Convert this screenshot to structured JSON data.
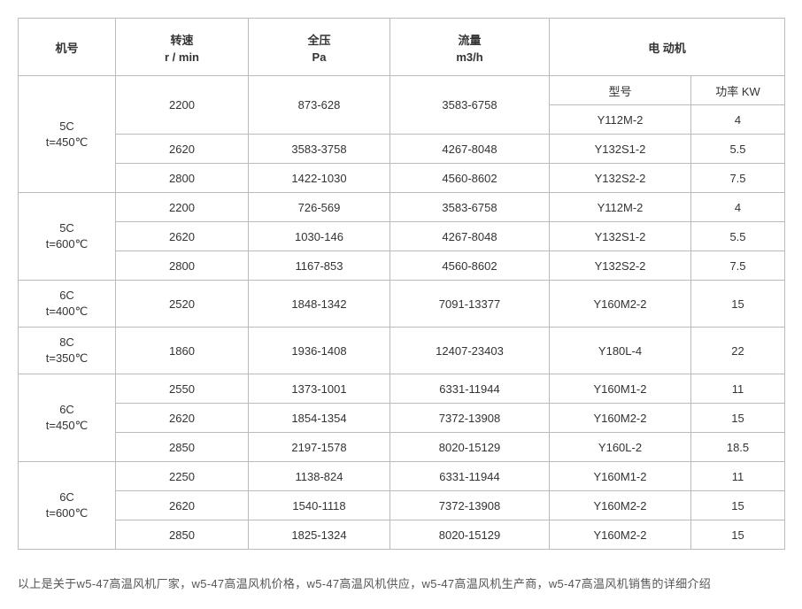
{
  "columns": {
    "machine": "机号",
    "speed_line1": "转速",
    "speed_line2": "r / min",
    "pressure_line1": "全压",
    "pressure_line2": "Pa",
    "flow_line1": "流量",
    "flow_line2": "m3/h",
    "motor_header": "电  动机",
    "motor_model": "型号",
    "motor_power": "功率 KW"
  },
  "groups": [
    {
      "label_line1": "5C",
      "label_line2": "t=450℃",
      "rowspan": 3,
      "model_sub": true,
      "rows": [
        {
          "speed": "2200",
          "pressure": "873-628",
          "flow": "3583-6758",
          "model": "Y112M-2",
          "power": "4"
        },
        {
          "speed": "2620",
          "pressure": "3583-3758",
          "flow": "4267-8048",
          "model": "Y132S1-2",
          "power": "5.5"
        },
        {
          "speed": "2800",
          "pressure": "1422-1030",
          "flow": "4560-8602",
          "model": "Y132S2-2",
          "power": "7.5"
        }
      ]
    },
    {
      "label_line1": "5C",
      "label_line2": "t=600℃",
      "rowspan": 3,
      "rows": [
        {
          "speed": "2200",
          "pressure": "726-569",
          "flow": "3583-6758",
          "model": "Y112M-2",
          "power": "4"
        },
        {
          "speed": "2620",
          "pressure": "1030-146",
          "flow": "4267-8048",
          "model": "Y132S1-2",
          "power": "5.5"
        },
        {
          "speed": "2800",
          "pressure": "1167-853",
          "flow": "4560-8602",
          "model": "Y132S2-2",
          "power": "7.5"
        }
      ]
    },
    {
      "label_line1": "6C",
      "label_line2": "t=400℃",
      "rowspan": 1,
      "rows": [
        {
          "speed": "2520",
          "pressure": "1848-1342",
          "flow": "7091-13377",
          "model": "Y160M2-2",
          "power": "15"
        }
      ]
    },
    {
      "label_line1": "8C",
      "label_line2": "t=350℃",
      "rowspan": 1,
      "rows": [
        {
          "speed": "1860",
          "pressure": "1936-1408",
          "flow": "12407-23403",
          "model": "Y180L-4",
          "power": "22"
        }
      ]
    },
    {
      "label_line1": "6C",
      "label_line2": "t=450℃",
      "rowspan": 3,
      "rows": [
        {
          "speed": "2550",
          "pressure": "1373-1001",
          "flow": "6331-11944",
          "model": "Y160M1-2",
          "power": "11"
        },
        {
          "speed": "2620",
          "pressure": "1854-1354",
          "flow": "7372-13908",
          "model": "Y160M2-2",
          "power": "15"
        },
        {
          "speed": "2850",
          "pressure": "2197-1578",
          "flow": "8020-15129",
          "model": "Y160L-2",
          "power": "18.5"
        }
      ]
    },
    {
      "label_line1": "6C",
      "label_line2": "t=600℃",
      "rowspan": 3,
      "rows": [
        {
          "speed": "2250",
          "pressure": "1138-824",
          "flow": "6331-11944",
          "model": "Y160M1-2",
          "power": "11"
        },
        {
          "speed": "2620",
          "pressure": "1540-1118",
          "flow": "7372-13908",
          "model": "Y160M2-2",
          "power": "15"
        },
        {
          "speed": "2850",
          "pressure": "1825-1324",
          "flow": "8020-15129",
          "model": "Y160M2-2",
          "power": "15"
        }
      ]
    }
  ],
  "footer_note": "以上是关于w5-47高温风机厂家，w5-47高温风机价格，w5-47高温风机供应，w5-47高温风机生产商，w5-47高温风机销售的详细介绍"
}
